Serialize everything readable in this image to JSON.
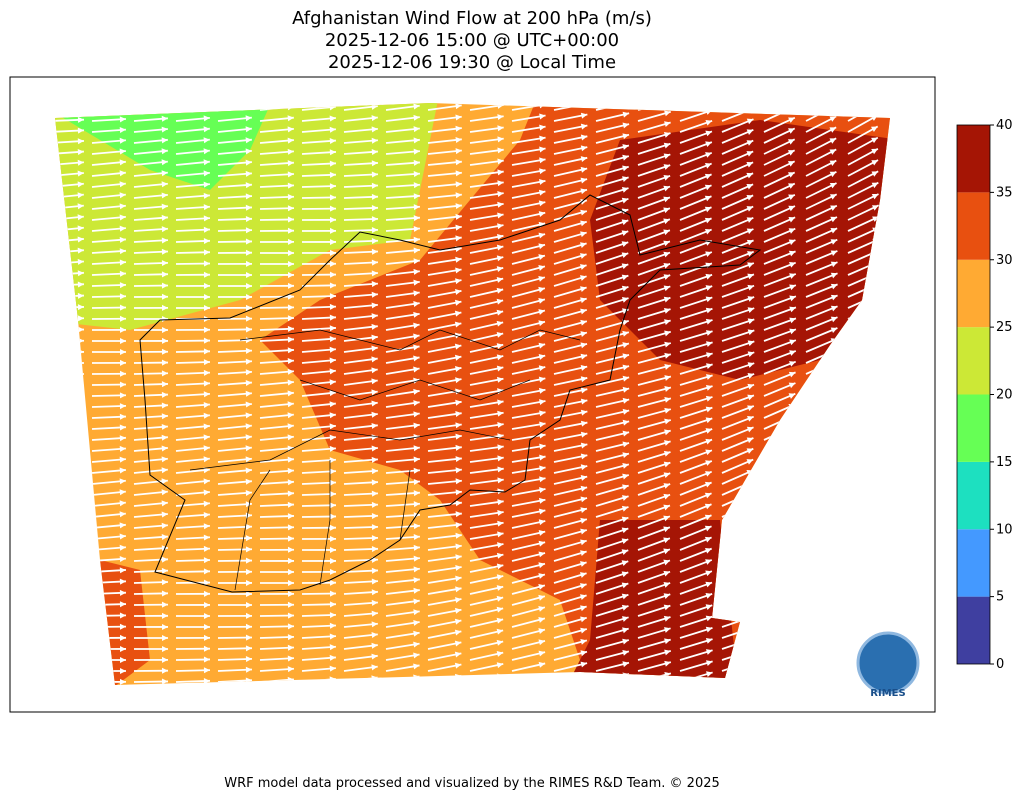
{
  "chart_data": {
    "type": "map",
    "title": [
      "Afghanistan Wind Flow at 200 hPa (m/s)",
      "2025-12-06 15:00 @ UTC+00:00",
      "2025-12-06 19:30 @ Local Time"
    ],
    "colorbar": {
      "ylim": [
        0,
        40
      ],
      "bins": [
        0,
        5,
        10,
        15,
        20,
        25,
        30,
        35,
        40
      ],
      "colors": [
        "#3f3fa0",
        "#4499ff",
        "#1de0c0",
        "#66ff55",
        "#cce836",
        "#ffaa33",
        "#e85010",
        "#a51505"
      ]
    },
    "logo": "RIMES",
    "footer": "WRF model data processed and visualized by the RIMES R&D Team. © 2025"
  }
}
